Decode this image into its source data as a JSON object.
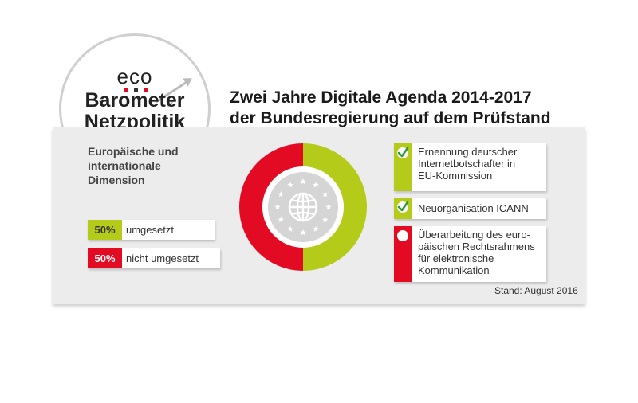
{
  "badge": {
    "eco": "eco",
    "line1": "Barometer",
    "line2": "Netzpolitik"
  },
  "headline": {
    "line1": "Zwei Jahre Digitale Agenda 2014-2017",
    "line2": "der Bundesregierung auf dem Prüfstand"
  },
  "dimension": {
    "line1": "Europäische und",
    "line2": "internationale",
    "line3": "Dimension"
  },
  "colors": {
    "green": "#b4cc19",
    "red": "#e30b24",
    "grey_panel": "#ececec",
    "globe_grey": "#d5d5d5"
  },
  "stats": [
    {
      "value": "50%",
      "label": "umgesetzt",
      "color": "#b4cc19"
    },
    {
      "value": "50%",
      "label": "nicht umgesetzt",
      "color": "#e30b24"
    }
  ],
  "chart_data": {
    "type": "pie",
    "categories": [
      "umgesetzt",
      "nicht umgesetzt"
    ],
    "values": [
      50,
      50
    ],
    "colors": [
      "#b4cc19",
      "#e30b24"
    ],
    "center_icon": "globe-with-eu-stars-icon"
  },
  "measures": [
    {
      "lines": [
        "Ernennung deutscher",
        "Internetbotschafter in",
        "EU-Kommission"
      ],
      "status": "umgesetzt",
      "icon": "check-icon"
    },
    {
      "lines": [
        "Neuorganisation ICANN"
      ],
      "status": "umgesetzt",
      "icon": "check-icon"
    },
    {
      "lines": [
        "Überarbeitung des euro-",
        "päischen Rechtsrahmens",
        "für elektronische",
        "Kommunikation"
      ],
      "status": "nicht umgesetzt",
      "icon": "empty-circle-icon"
    }
  ],
  "stand": "Stand: August 2016"
}
